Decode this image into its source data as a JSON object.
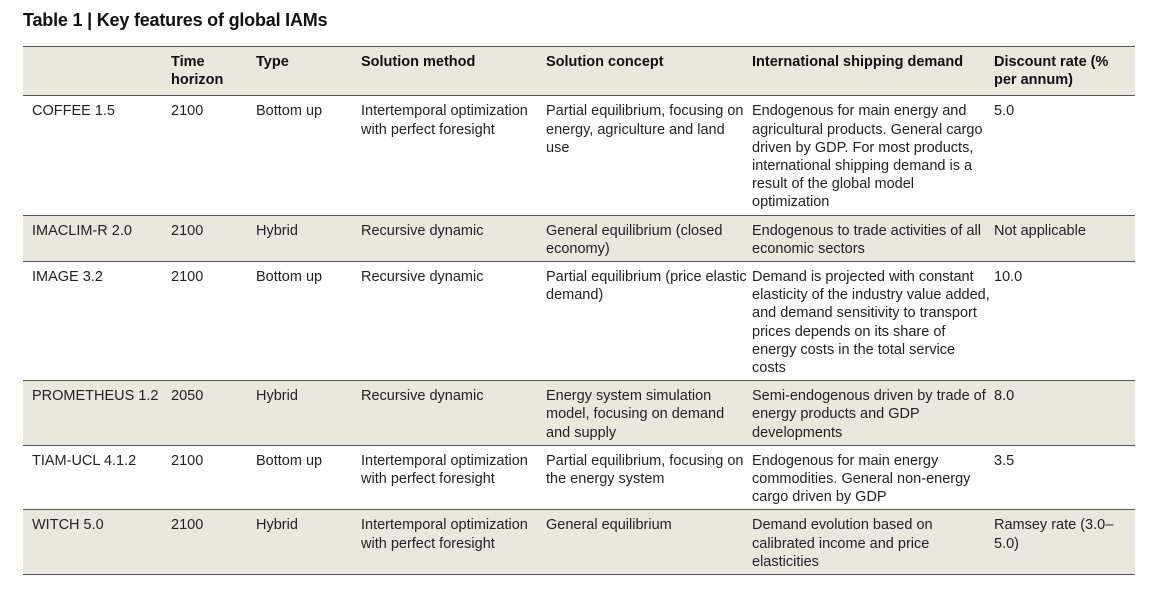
{
  "title": "Table 1 | Key features of global IAMs",
  "columns": [
    "",
    "Time horizon",
    "Type",
    "Solution method",
    "Solution concept",
    "International shipping demand",
    "Discount rate (% per annum)"
  ],
  "rows": [
    {
      "model": "COFFEE 1.5",
      "time_horizon": "2100",
      "type": "Bottom up",
      "solution_method": "Intertemporal optimization with perfect foresight",
      "solution_concept": "Partial equilibrium, focusing on energy, agriculture and land use",
      "shipping_demand": "Endogenous for main energy and agricultural products. General cargo driven by GDP. For most products, international shipping demand is a result of the global model optimization",
      "discount_rate": "5.0"
    },
    {
      "model": "IMACLIM-R 2.0",
      "time_horizon": "2100",
      "type": "Hybrid",
      "solution_method": "Recursive dynamic",
      "solution_concept": "General equilibrium (closed economy)",
      "shipping_demand": "Endogenous to trade activities of all economic sectors",
      "discount_rate": "Not applicable"
    },
    {
      "model": "IMAGE 3.2",
      "time_horizon": "2100",
      "type": "Bottom up",
      "solution_method": "Recursive dynamic",
      "solution_concept": "Partial equilibrium (price elastic demand)",
      "shipping_demand": "Demand is projected with constant elasticity of the industry value added, and demand sensitivity to transport prices depends on its share of energy costs in the total service costs",
      "discount_rate": "10.0"
    },
    {
      "model": "PROMETHEUS 1.2",
      "time_horizon": "2050",
      "type": "Hybrid",
      "solution_method": "Recursive dynamic",
      "solution_concept": "Energy system simulation model, focusing on demand and supply",
      "shipping_demand": "Semi-endogenous driven by trade of energy products and GDP developments",
      "discount_rate": "8.0"
    },
    {
      "model": "TIAM-UCL 4.1.2",
      "time_horizon": "2100",
      "type": "Bottom up",
      "solution_method": "Intertemporal optimization with perfect foresight",
      "solution_concept": "Partial equilibrium, focusing on the energy system",
      "shipping_demand": "Endogenous for main energy commodities. General non-energy cargo driven by GDP",
      "discount_rate": "3.5"
    },
    {
      "model": "WITCH 5.0",
      "time_horizon": "2100",
      "type": "Hybrid",
      "solution_method": "Intertemporal optimization with perfect foresight",
      "solution_concept": "General equilibrium",
      "shipping_demand": "Demand evolution based on calibrated income and price elasticities",
      "discount_rate": "Ramsey rate (3.0–5.0)"
    }
  ]
}
